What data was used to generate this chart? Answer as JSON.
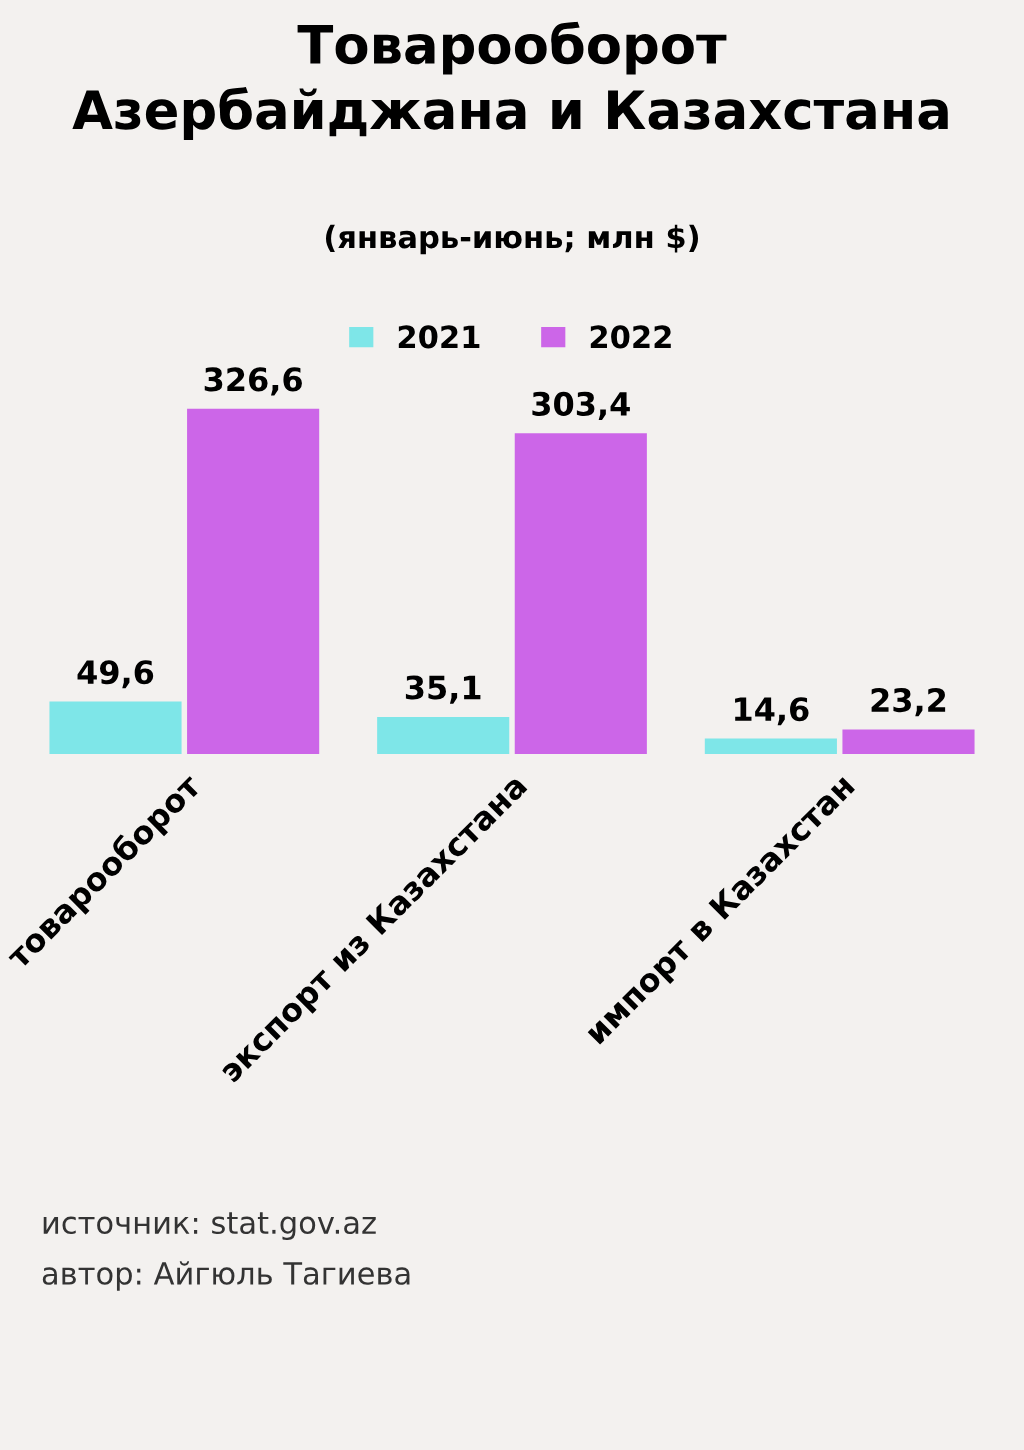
{
  "chart_data": {
    "type": "bar",
    "title": "Товарооборот\nАзербайджана и Казахстана",
    "subtitle": "(январь-июнь; млн $)",
    "categories": [
      "товарооборот",
      "экспорт из Казахстана",
      "импорт в Казахстан"
    ],
    "series": [
      {
        "name": "2021",
        "color": "#7ee6e8",
        "values": [
          49.6,
          35.1,
          14.6
        ],
        "value_labels": [
          "49,6",
          "35,1",
          "14,6"
        ]
      },
      {
        "name": "2022",
        "color": "#cc66e8",
        "values": [
          326.6,
          303.4,
          23.2
        ],
        "value_labels": [
          "326,6",
          "303,4",
          "23,2"
        ]
      }
    ],
    "legend": "top",
    "annotations": [
      "источник: stat.gov.az",
      "автор: Айгюль Тагиева"
    ]
  }
}
